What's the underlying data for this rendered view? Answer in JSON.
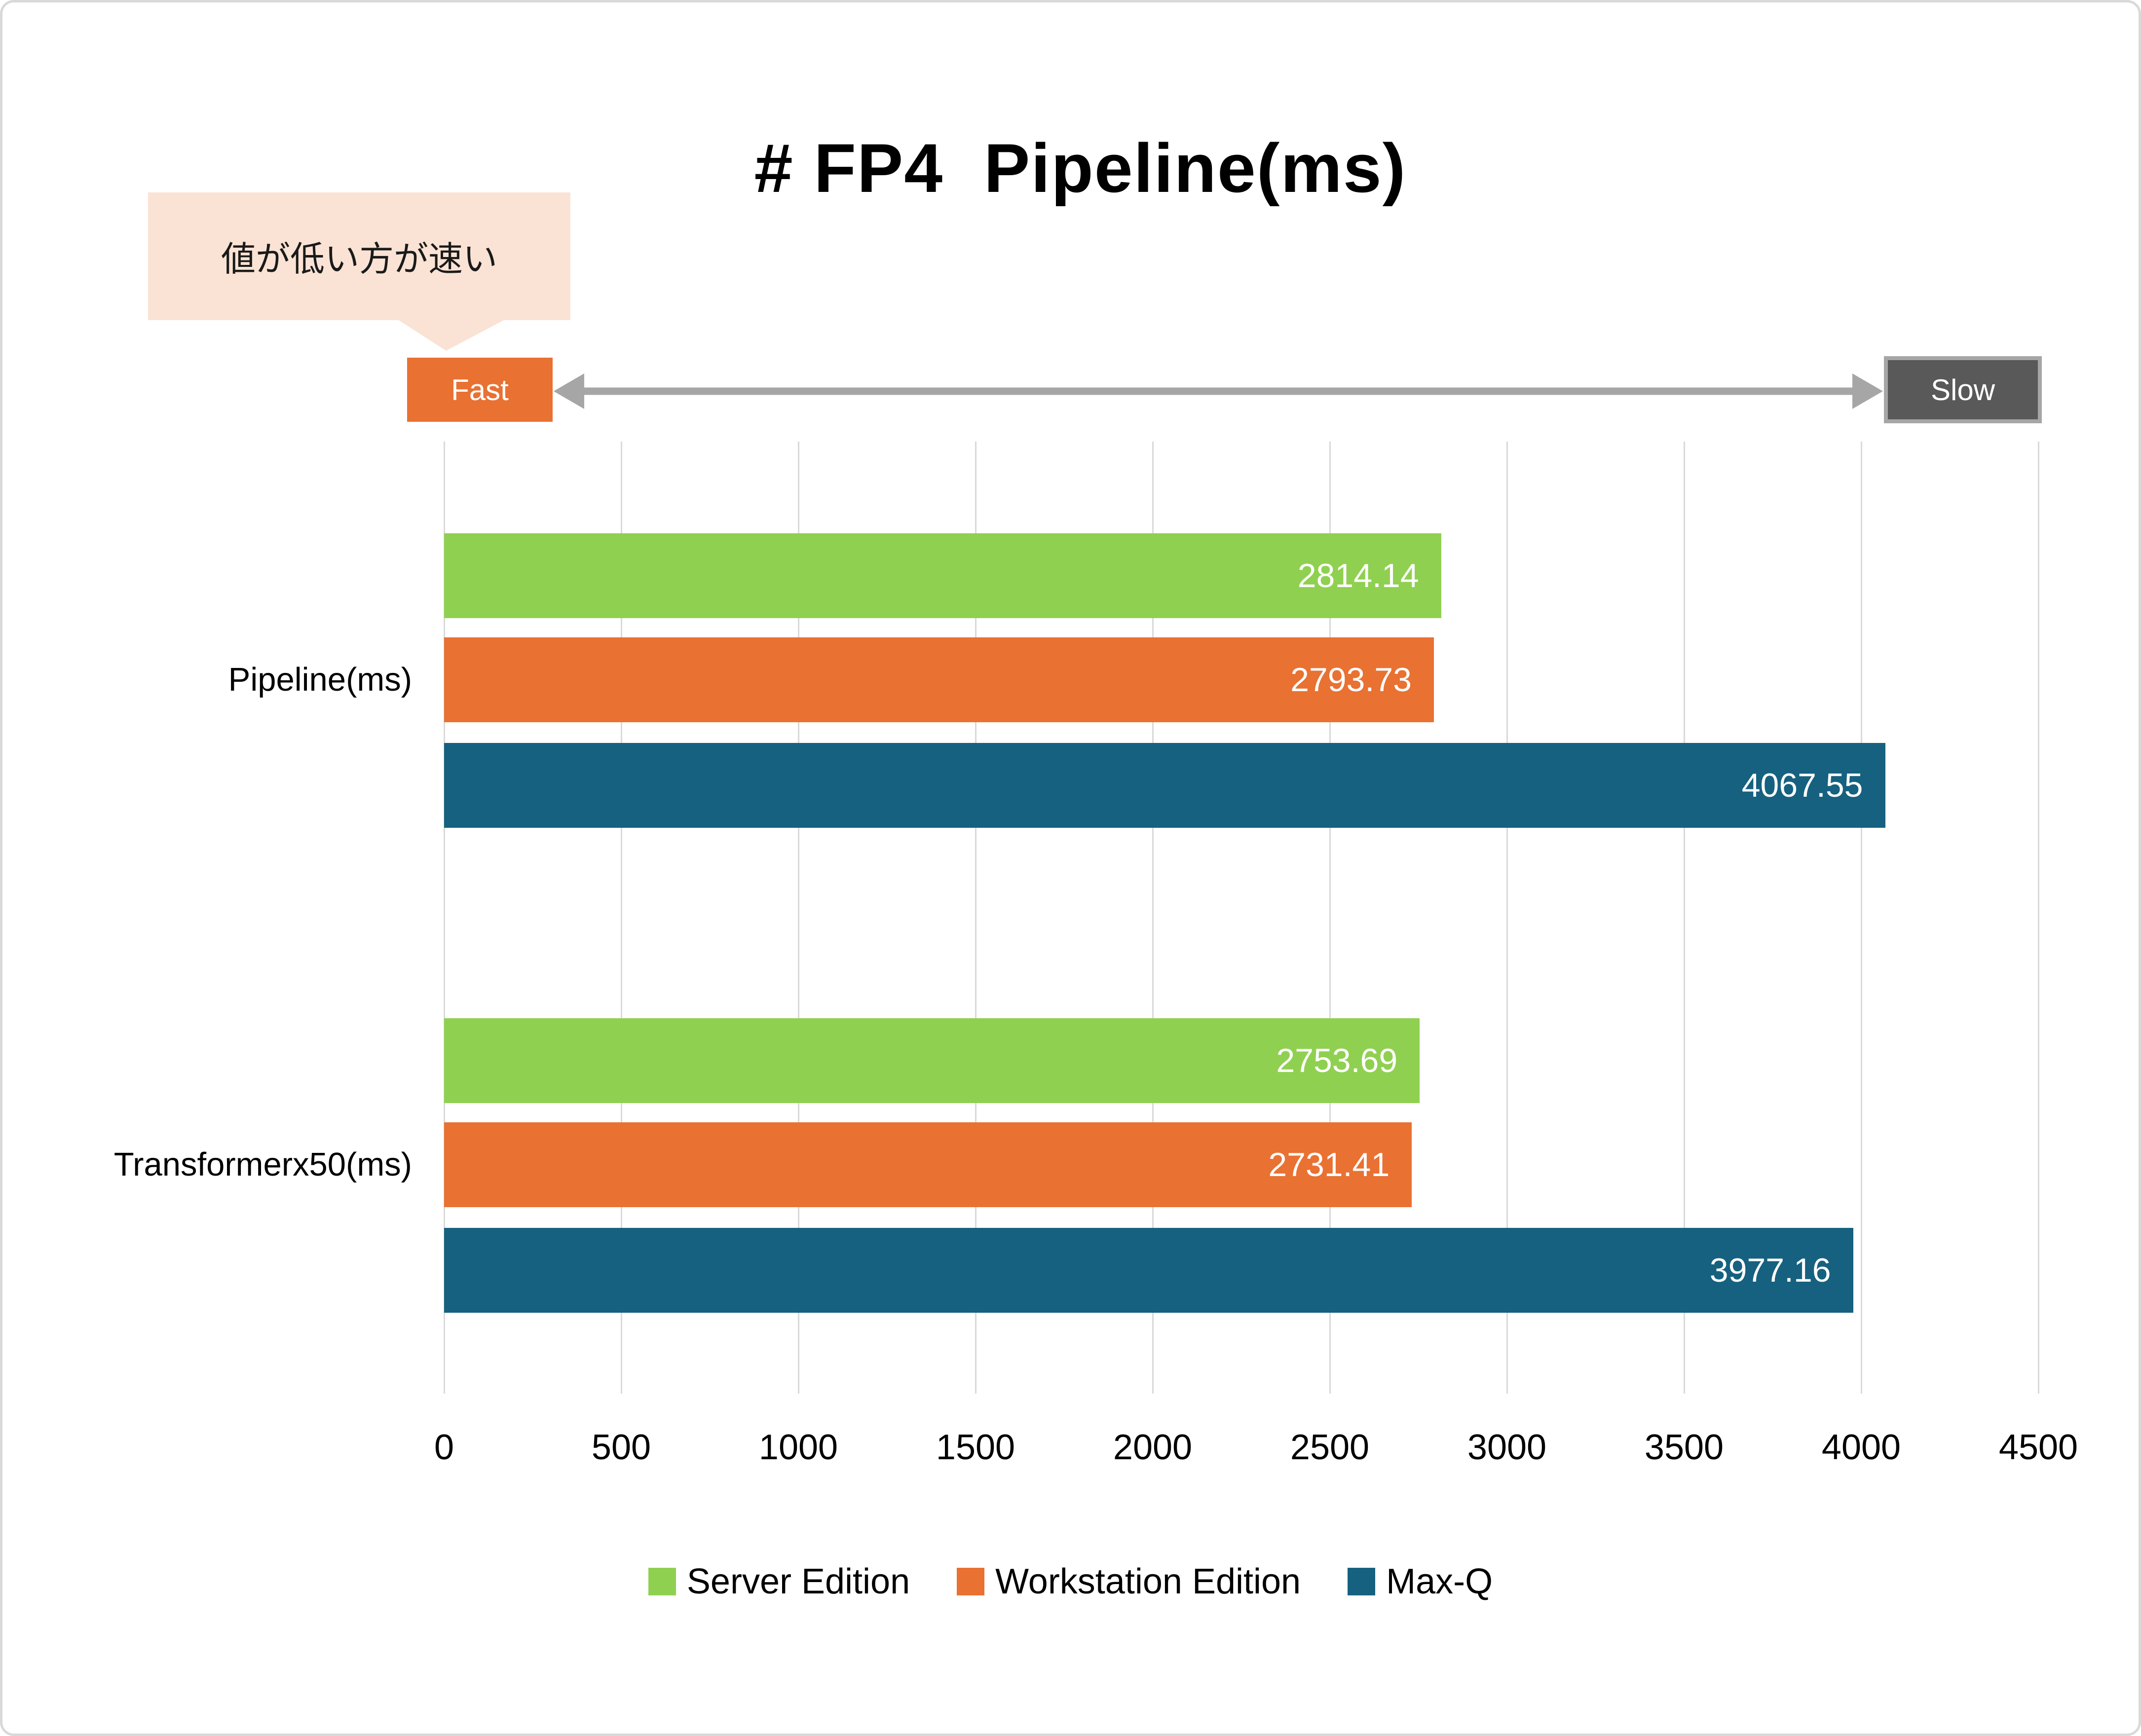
{
  "page": {
    "background": "#FFFFFF",
    "border_color": "#D9D9D9"
  },
  "title": "# FP4  Pipeline(ms)",
  "callout": {
    "text": "値が低い方が速い",
    "bg": "#FAE3D4"
  },
  "axis_annotation": {
    "fast_label": "Fast",
    "fast_bg": "#E97132",
    "slow_label": "Slow",
    "slow_bg": "#595959",
    "slow_border": "#A6A6A6",
    "arrow_color": "#A6A6A6"
  },
  "chart_data": {
    "type": "bar",
    "orientation": "horizontal",
    "title": "# FP4  Pipeline(ms)",
    "categories": [
      "Pipeline(ms)",
      "Transformerx50(ms)"
    ],
    "series": [
      {
        "name": "Server Edition",
        "color": "#90D051",
        "values": [
          2814.14,
          2753.69
        ]
      },
      {
        "name": "Workstation Edition",
        "color": "#E97132",
        "values": [
          2793.73,
          2731.41
        ]
      },
      {
        "name": "Max-Q",
        "color": "#16617F",
        "values": [
          4067.55,
          3977.16
        ]
      }
    ],
    "xlim": [
      0,
      4500
    ],
    "xticks": [
      0,
      500,
      1000,
      1500,
      2000,
      2500,
      3000,
      3500,
      4000,
      4500
    ],
    "grid": "vertical-only",
    "gridline_color": "#D9D9D9",
    "legend_position": "bottom",
    "value_label_position": "inside-end",
    "value_label_color": "#FFFFFF",
    "value_label_decimals": 2
  }
}
